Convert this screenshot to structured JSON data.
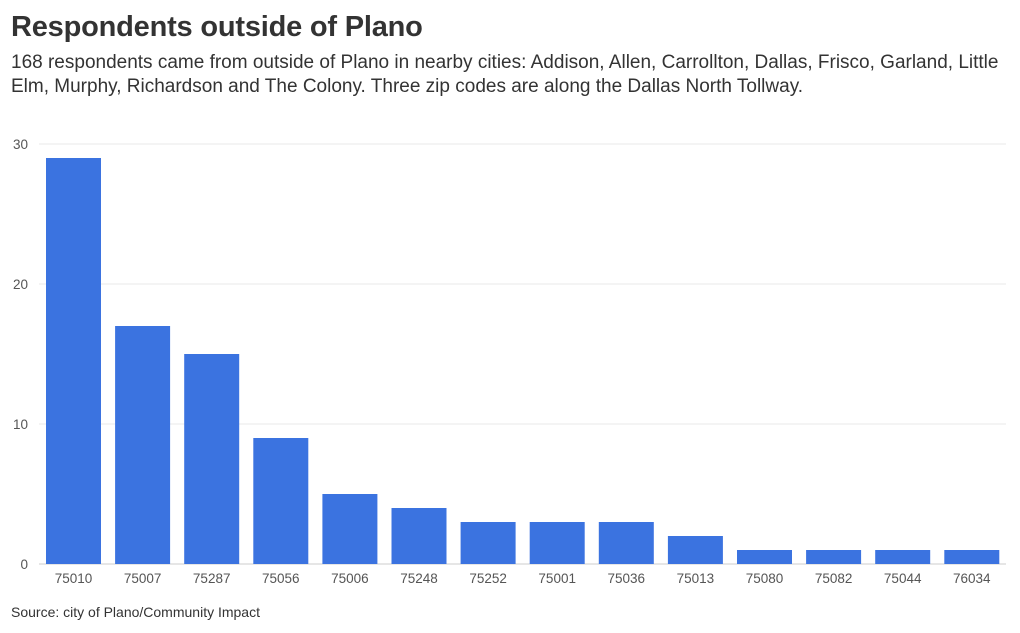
{
  "title": "Respondents outside of Plano",
  "subtitle": "168 respondents came from outside of Plano in nearby cities: Addison, Allen, Carrollton, Dallas, Frisco, Garland, Little Elm, Murphy, Richardson and The Colony. Three zip codes are along the Dallas North Tollway.",
  "source": "Source: city of Plano/Community Impact",
  "colors": {
    "bar": "#3b73e0",
    "grid": "#e8e8e8",
    "text": "#333333",
    "tick": "#555555"
  },
  "chart_data": {
    "type": "bar",
    "categories": [
      "75010",
      "75007",
      "75287",
      "75056",
      "75006",
      "75248",
      "75252",
      "75001",
      "75036",
      "75013",
      "75080",
      "75082",
      "75044",
      "76034"
    ],
    "values": [
      29,
      17,
      15,
      9,
      5,
      4,
      3,
      3,
      3,
      2,
      1,
      1,
      1,
      1
    ],
    "ylim": [
      0,
      30
    ],
    "yticks": [
      0,
      10,
      20,
      30
    ],
    "grid": true,
    "xlabel": "",
    "ylabel": ""
  }
}
